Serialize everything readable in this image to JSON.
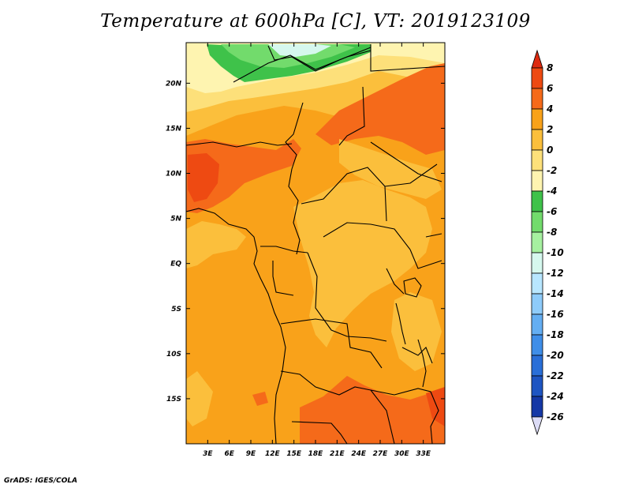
{
  "title": "Temperature at 600hPa [C], VT: 2019123109",
  "credit": "GrADS: IGES/COLA",
  "map": {
    "lon_range": [
      0,
      36
    ],
    "lat_range": [
      -20,
      24.5
    ],
    "lon_ticks": [
      {
        "value": 3,
        "label": "3E"
      },
      {
        "value": 6,
        "label": "6E"
      },
      {
        "value": 9,
        "label": "9E"
      },
      {
        "value": 12,
        "label": "12E"
      },
      {
        "value": 15,
        "label": "15E"
      },
      {
        "value": 18,
        "label": "18E"
      },
      {
        "value": 21,
        "label": "21E"
      },
      {
        "value": 24,
        "label": "24E"
      },
      {
        "value": 27,
        "label": "27E"
      },
      {
        "value": 30,
        "label": "30E"
      },
      {
        "value": 33,
        "label": "33E"
      }
    ],
    "lat_ticks": [
      {
        "value": 20,
        "label": "20N"
      },
      {
        "value": 15,
        "label": "15N"
      },
      {
        "value": 10,
        "label": "10N"
      },
      {
        "value": 5,
        "label": "5N"
      },
      {
        "value": 0,
        "label": "EQ"
      },
      {
        "value": -5,
        "label": "5S"
      },
      {
        "value": -10,
        "label": "10S"
      },
      {
        "value": -15,
        "label": "15S"
      }
    ]
  },
  "colorbar": {
    "top_arrow_color": "#dd2a10",
    "bottom_arrow_color": "#dcdcf6",
    "levels": [
      "8",
      "6",
      "4",
      "2",
      "0",
      "-2",
      "-4",
      "-6",
      "-8",
      "-10",
      "-12",
      "-14",
      "-16",
      "-18",
      "-20",
      "-22",
      "-24",
      "-26"
    ],
    "colors": [
      "#ee4a12",
      "#f56a1a",
      "#f9a21a",
      "#fbbf3c",
      "#fde07a",
      "#fef4b0",
      "#3fc24a",
      "#72db6c",
      "#a6f0a0",
      "#d6f8ee",
      "#b8e6ff",
      "#8ecbfa",
      "#64aef2",
      "#3f8ee8",
      "#2a6fd8",
      "#1e55c2",
      "#1538a6"
    ]
  }
}
